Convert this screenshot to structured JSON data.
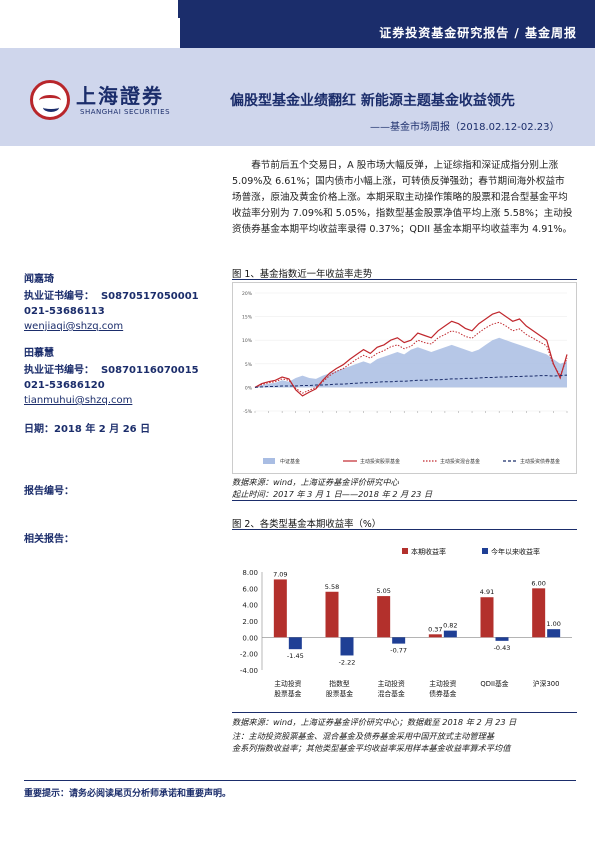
{
  "header": {
    "report_type": "证券投资基金研究报告 / 基金周报",
    "logo_cn": "上海證券",
    "logo_en": "SHANGHAI SECURITIES",
    "title": "偏股型基金业绩翻红 新能源主题基金收益领先",
    "subtitle": "——基金市场周报（2018.02.12-02.23）",
    "navy": "#1b2d6b",
    "hero_bg": "#cfd6ec"
  },
  "authors": [
    {
      "name": "闻嘉琦",
      "cert_label": "执业证书编号：",
      "cert": "S0870517050001",
      "phone": "021-53686113",
      "email": "wenjiaqi@shzq.com"
    },
    {
      "name": "田慕慧",
      "cert_label": "执业证书编号：",
      "cert": "S0870116070015",
      "phone": "021-53686120",
      "email": "tianmuhui@shzq.com"
    }
  ],
  "date_line": "日期：2018 年 2 月 26 日",
  "report_no_label": "报告编号：",
  "related_label": "相关报告：",
  "paragraph": "春节前后五个交易日，A 股市场大幅反弹，上证综指和深证成指分别上涨 5.09%及 6.61%；国内债市小幅上涨，可转债反弹强劲；春节期间海外权益市场普涨，原油及黄金价格上涨。本期采取主动操作策略的股票和混合型基金平均收益率分别为 7.09%和 5.05%，指数型基金股票净值平均上涨 5.58%；主动投资债券基金本期平均收益率录得 0.37%；QDII 基金本期平均收益率为 4.91%。",
  "fig1": {
    "title": "图 1、基金指数近一年收益率走势",
    "source": "数据来源：wind，上海证券基金评价研究中心",
    "period": "起止时间：2017 年 3 月 1 日——2018 年 2 月 23 日",
    "chart_data": {
      "type": "area",
      "ylim": [
        -5,
        20
      ],
      "yticks": [
        "20%",
        "15%",
        "10%",
        "5%",
        "0%",
        "-5%"
      ],
      "series": [
        {
          "name": "中证基金",
          "style": "area",
          "color": "#a9bde3",
          "values": [
            0,
            0.5,
            0.8,
            1,
            1.5,
            1.2,
            2,
            2.5,
            2,
            1.8,
            2.5,
            3,
            3.5,
            4,
            4.5,
            5,
            5.5,
            5,
            6,
            6.5,
            7,
            7.5,
            7,
            8,
            8.5,
            8,
            7.5,
            8,
            8.5,
            9,
            8.5,
            8,
            7.5,
            8,
            9,
            10,
            10.5,
            10,
            9.5,
            9,
            8.5,
            8,
            7.5,
            7,
            6,
            5,
            5.5
          ]
        },
        {
          "name": "主动投资股票基金",
          "style": "line",
          "color": "#c0272d",
          "values": [
            0,
            0.8,
            1.2,
            1.5,
            2.2,
            1.8,
            -0.5,
            -1.8,
            -1,
            -0.3,
            1.5,
            3,
            4,
            4.8,
            6,
            7,
            8,
            7.2,
            8.5,
            9,
            10,
            10.5,
            9.5,
            10,
            11.5,
            11,
            10.5,
            12,
            13,
            14,
            13.5,
            12.5,
            12,
            13.5,
            14.5,
            15.5,
            16,
            15,
            14,
            14.5,
            13,
            12,
            11,
            10,
            5,
            2,
            7
          ]
        },
        {
          "name": "主动投资混合基金",
          "style": "dot",
          "color": "#c0272d",
          "values": [
            0,
            0.6,
            1,
            1.2,
            1.8,
            1.5,
            -0.2,
            -1.2,
            -0.6,
            0,
            1.2,
            2.5,
            3.4,
            4,
            5,
            6,
            6.8,
            6.2,
            7.2,
            7.8,
            8.6,
            9,
            8.2,
            8.7,
            10,
            9.5,
            9.2,
            10.5,
            11.2,
            12,
            11.6,
            10.8,
            10.4,
            11.6,
            12.6,
            13.4,
            13.8,
            13,
            12,
            12.4,
            11.2,
            10.4,
            9.6,
            8.8,
            4.8,
            2.5,
            6.2
          ]
        },
        {
          "name": "主动投资债券基金",
          "style": "dash",
          "color": "#1b2d6b",
          "values": [
            0,
            0.1,
            0.2,
            0.2,
            0.3,
            0.3,
            0.3,
            0.4,
            0.4,
            0.5,
            0.5,
            0.6,
            0.7,
            0.7,
            0.8,
            0.9,
            1,
            1,
            1.1,
            1.2,
            1.2,
            1.3,
            1.3,
            1.4,
            1.5,
            1.5,
            1.6,
            1.6,
            1.7,
            1.8,
            1.8,
            1.9,
            1.9,
            2,
            2.1,
            2.1,
            2.2,
            2.2,
            2.3,
            2.3,
            2.4,
            2.4,
            2.5,
            2.5,
            2.4,
            2.5,
            2.6
          ]
        }
      ]
    }
  },
  "fig2": {
    "title": "图 2、各类型基金本期收益率（%）",
    "source": "数据来源：wind，上海证券基金评价研究中心；数据截至 2018 年 2 月 23 日",
    "note1": "注：主动投资股票基金、混合基金及债券基金采用中国开放式主动管理基",
    "note2": "金系列指数收益率；其他类型基金平均收益率采用样本基金收益率算术平均值",
    "chart_data": {
      "type": "bar",
      "categories": [
        [
          "主动投资",
          "股票基金"
        ],
        [
          "指数型",
          "股票基金"
        ],
        [
          "主动投资",
          "混合基金"
        ],
        [
          "主动投资",
          "债券基金"
        ],
        [
          "QDII基金"
        ],
        [
          "沪深300"
        ]
      ],
      "series": [
        {
          "name": "本期收益率",
          "color": "#b3302c",
          "values": [
            7.09,
            5.58,
            5.05,
            0.37,
            4.91,
            6.0
          ]
        },
        {
          "name": "今年以来收益率",
          "color": "#1f3f95",
          "values": [
            -1.45,
            -2.22,
            -0.77,
            0.82,
            -0.43,
            1.0
          ]
        }
      ],
      "labels1": [
        "7.09",
        "5.58",
        "5.05",
        "0.37",
        "4.91",
        "6.00"
      ],
      "labels2": [
        "-1.45",
        "-2.22",
        "-0.77",
        "0.82",
        "-0.43",
        "1.00"
      ],
      "ylim": [
        -4,
        8
      ],
      "yticks": [
        "8.00",
        "6.00",
        "4.00",
        "2.00",
        "0.00",
        "-2.00",
        "-4.00"
      ]
    }
  },
  "footer": "重要提示：请务必阅读尾页分析师承诺和重要声明。"
}
